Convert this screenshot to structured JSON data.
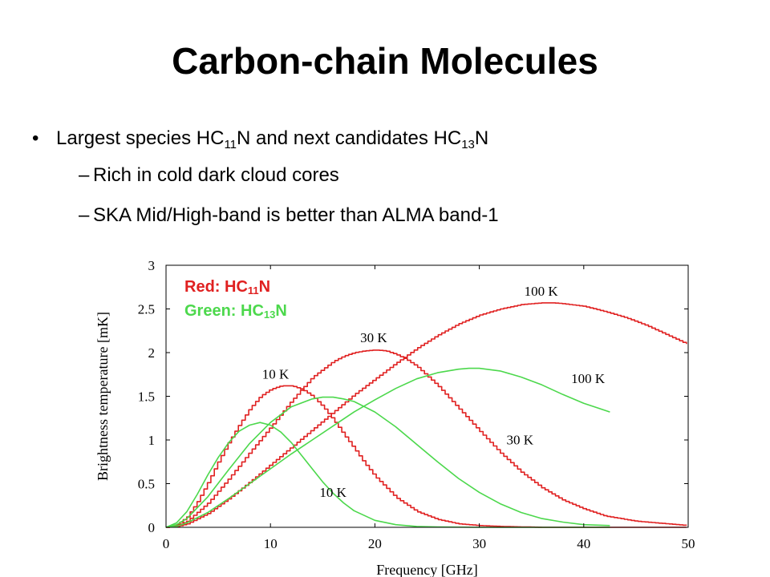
{
  "slide": {
    "title": "Carbon-chain Molecules",
    "bullet1": {
      "prefix": "Largest species HC",
      "sub1": "11",
      "mid": "N and next candidates HC",
      "sub2": "13",
      "suffix": "N"
    },
    "sub_bullets": [
      "Rich in cold dark cloud cores",
      "SKA Mid/High-band is better than ALMA band-1"
    ]
  },
  "legend": {
    "red": {
      "prefix": "Red: HC",
      "sub": "11",
      "suffix": "N",
      "color": "#e02020"
    },
    "green": {
      "prefix": "Green: HC",
      "sub": "13",
      "suffix": "N",
      "color": "#4cd84c"
    }
  },
  "chart_data": {
    "type": "line",
    "xlabel": "Frequency [GHz]",
    "ylabel": "Brightness temperature [mK]",
    "xlim": [
      0,
      50
    ],
    "ylim": [
      0,
      3
    ],
    "xticks": [
      0,
      10,
      20,
      30,
      40,
      50
    ],
    "yticks": [
      0,
      0.5,
      1,
      1.5,
      2,
      2.5,
      3
    ],
    "series": [
      {
        "name": "Red: HC11N",
        "label": "10 K",
        "color": "#e02020",
        "style": "step",
        "x": [
          0,
          1,
          2,
          3,
          4,
          5,
          6,
          7,
          8,
          9,
          10,
          11,
          12,
          13,
          14,
          15,
          16,
          17,
          18,
          19,
          20,
          22,
          24,
          26,
          28,
          30,
          32,
          34,
          36,
          40,
          45,
          50
        ],
        "y": [
          0,
          0.03,
          0.12,
          0.3,
          0.52,
          0.76,
          0.98,
          1.18,
          1.36,
          1.5,
          1.58,
          1.62,
          1.62,
          1.58,
          1.5,
          1.38,
          1.23,
          1.06,
          0.9,
          0.73,
          0.58,
          0.34,
          0.18,
          0.09,
          0.04,
          0.02,
          0.01,
          0.005,
          0,
          0,
          0,
          0
        ]
      },
      {
        "name": "Red: HC11N",
        "label": "30 K",
        "color": "#e02020",
        "style": "step",
        "x": [
          0,
          1,
          2,
          4,
          6,
          8,
          10,
          12,
          14,
          16,
          17,
          18,
          19,
          20,
          21,
          22,
          23,
          24,
          26,
          28,
          30,
          32,
          34,
          36,
          38,
          40,
          42,
          45,
          50
        ],
        "y": [
          0,
          0.02,
          0.07,
          0.28,
          0.56,
          0.86,
          1.15,
          1.45,
          1.72,
          1.9,
          1.96,
          2.0,
          2.02,
          2.03,
          2.02,
          1.98,
          1.92,
          1.84,
          1.62,
          1.36,
          1.1,
          0.85,
          0.63,
          0.45,
          0.31,
          0.21,
          0.13,
          0.07,
          0.02
        ]
      },
      {
        "name": "Red: HC11N",
        "label": "100 K",
        "color": "#e02020",
        "style": "step",
        "x": [
          0,
          1,
          2,
          4,
          6,
          8,
          10,
          12,
          14,
          16,
          18,
          20,
          22,
          24,
          26,
          28,
          30,
          32,
          34,
          36,
          37,
          38,
          40,
          42,
          44,
          46,
          48,
          50
        ],
        "y": [
          0,
          0.01,
          0.04,
          0.16,
          0.33,
          0.52,
          0.72,
          0.92,
          1.12,
          1.32,
          1.52,
          1.7,
          1.88,
          2.05,
          2.2,
          2.33,
          2.43,
          2.5,
          2.55,
          2.57,
          2.57,
          2.56,
          2.53,
          2.47,
          2.4,
          2.31,
          2.2,
          2.09
        ]
      },
      {
        "name": "Green: HC13N",
        "label": "10 K",
        "color": "#4cd84c",
        "style": "line",
        "x": [
          0,
          1,
          2,
          3,
          4,
          5,
          6,
          7,
          8,
          9,
          10,
          11,
          12,
          13,
          14,
          15,
          16,
          17,
          18,
          20,
          22,
          24,
          26,
          30,
          35,
          40,
          42.5
        ],
        "y": [
          0,
          0.05,
          0.18,
          0.38,
          0.6,
          0.8,
          0.97,
          1.1,
          1.17,
          1.2,
          1.17,
          1.09,
          0.97,
          0.82,
          0.67,
          0.52,
          0.39,
          0.28,
          0.19,
          0.08,
          0.03,
          0.01,
          0.005,
          0,
          0,
          0,
          0
        ]
      },
      {
        "name": "Green: HC13N",
        "label": "30 K",
        "color": "#4cd84c",
        "style": "line",
        "x": [
          0,
          1,
          2,
          4,
          6,
          8,
          10,
          12,
          14,
          15,
          16,
          17,
          18,
          20,
          22,
          24,
          26,
          28,
          30,
          32,
          34,
          36,
          38,
          40,
          42.5
        ],
        "y": [
          0,
          0.03,
          0.1,
          0.35,
          0.66,
          0.96,
          1.2,
          1.38,
          1.47,
          1.49,
          1.49,
          1.47,
          1.44,
          1.32,
          1.15,
          0.95,
          0.75,
          0.56,
          0.4,
          0.27,
          0.17,
          0.1,
          0.06,
          0.03,
          0.02
        ]
      },
      {
        "name": "Green: HC13N",
        "label": "100 K",
        "color": "#4cd84c",
        "style": "line",
        "x": [
          0,
          1,
          2,
          4,
          6,
          8,
          10,
          12,
          14,
          16,
          18,
          20,
          22,
          24,
          26,
          28,
          29,
          30,
          32,
          34,
          36,
          38,
          40,
          42.5
        ],
        "y": [
          0,
          0.01,
          0.05,
          0.17,
          0.33,
          0.5,
          0.67,
          0.84,
          1.0,
          1.16,
          1.32,
          1.46,
          1.59,
          1.7,
          1.77,
          1.81,
          1.82,
          1.82,
          1.79,
          1.72,
          1.63,
          1.52,
          1.42,
          1.32
        ]
      }
    ],
    "annotations": [
      {
        "text": "10 K",
        "x": 9.2,
        "y": 1.7,
        "color": "#000"
      },
      {
        "text": "30 K",
        "x": 18.6,
        "y": 2.12,
        "color": "#000"
      },
      {
        "text": "100 K",
        "x": 34.3,
        "y": 2.65,
        "color": "#000"
      },
      {
        "text": "100 K",
        "x": 38.8,
        "y": 1.65,
        "color": "#000"
      },
      {
        "text": "30 K",
        "x": 32.6,
        "y": 0.95,
        "color": "#000"
      },
      {
        "text": "10 K",
        "x": 14.7,
        "y": 0.35,
        "color": "#000"
      }
    ]
  }
}
